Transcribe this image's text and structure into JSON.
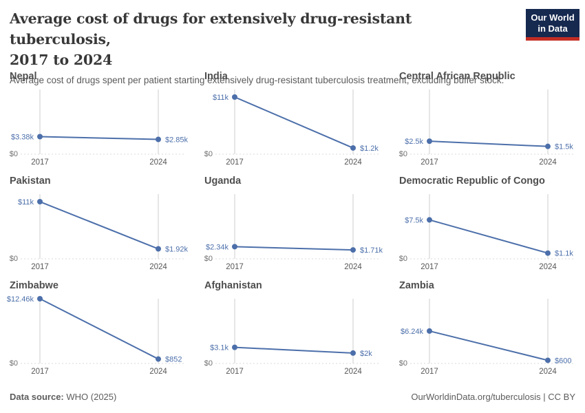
{
  "header": {
    "title_line1": "Average cost of drugs for extensively drug-resistant tuberculosis,",
    "title_line2": "2017 to 2024",
    "subtitle": "Average cost of drugs spent per patient starting extensively drug-resistant tuberculosis treatment, excluding buffer stock.",
    "logo": {
      "line1": "Our World",
      "line2": "in Data",
      "bg_color": "#16294f",
      "accent_color": "#c32d23"
    }
  },
  "chart_data": {
    "type": "line",
    "layout": "small-multiples-3x3",
    "x": [
      2017,
      2024
    ],
    "x_tick_labels": [
      "2017",
      "2024"
    ],
    "y_axis": {
      "min": 0,
      "max": 12460,
      "zero_label": "$0"
    },
    "grid": "vertical-gridlines-plus-dashed-zero-line",
    "legend": "none",
    "line_color": "#4c6faa",
    "gridline_color": "#cccccc",
    "zero_line_color": "#d8d8d8",
    "series": [
      {
        "name": "Nepal",
        "values": [
          3380,
          2850
        ],
        "labels": [
          "$3.38k",
          "$2.85k"
        ]
      },
      {
        "name": "India",
        "values": [
          11000,
          1200
        ],
        "labels": [
          "$11k",
          "$1.2k"
        ]
      },
      {
        "name": "Central African Republic",
        "values": [
          2500,
          1500
        ],
        "labels": [
          "$2.5k",
          "$1.5k"
        ]
      },
      {
        "name": "Pakistan",
        "values": [
          11000,
          1920
        ],
        "labels": [
          "$11k",
          "$1.92k"
        ]
      },
      {
        "name": "Uganda",
        "values": [
          2340,
          1710
        ],
        "labels": [
          "$2.34k",
          "$1.71k"
        ]
      },
      {
        "name": "Democratic Republic of Congo",
        "values": [
          7500,
          1100
        ],
        "labels": [
          "$7.5k",
          "$1.1k"
        ]
      },
      {
        "name": "Zimbabwe",
        "values": [
          12460,
          852
        ],
        "labels": [
          "$12.46k",
          "$852"
        ]
      },
      {
        "name": "Afghanistan",
        "values": [
          3100,
          2000
        ],
        "labels": [
          "$3.1k",
          "$2k"
        ]
      },
      {
        "name": "Zambia",
        "values": [
          6240,
          600
        ],
        "labels": [
          "$6.24k",
          "$600"
        ]
      }
    ]
  },
  "footer": {
    "source_label": "Data source:",
    "source_value": "WHO (2025)",
    "attribution": "OurWorldinData.org/tuberculosis | CC BY"
  }
}
